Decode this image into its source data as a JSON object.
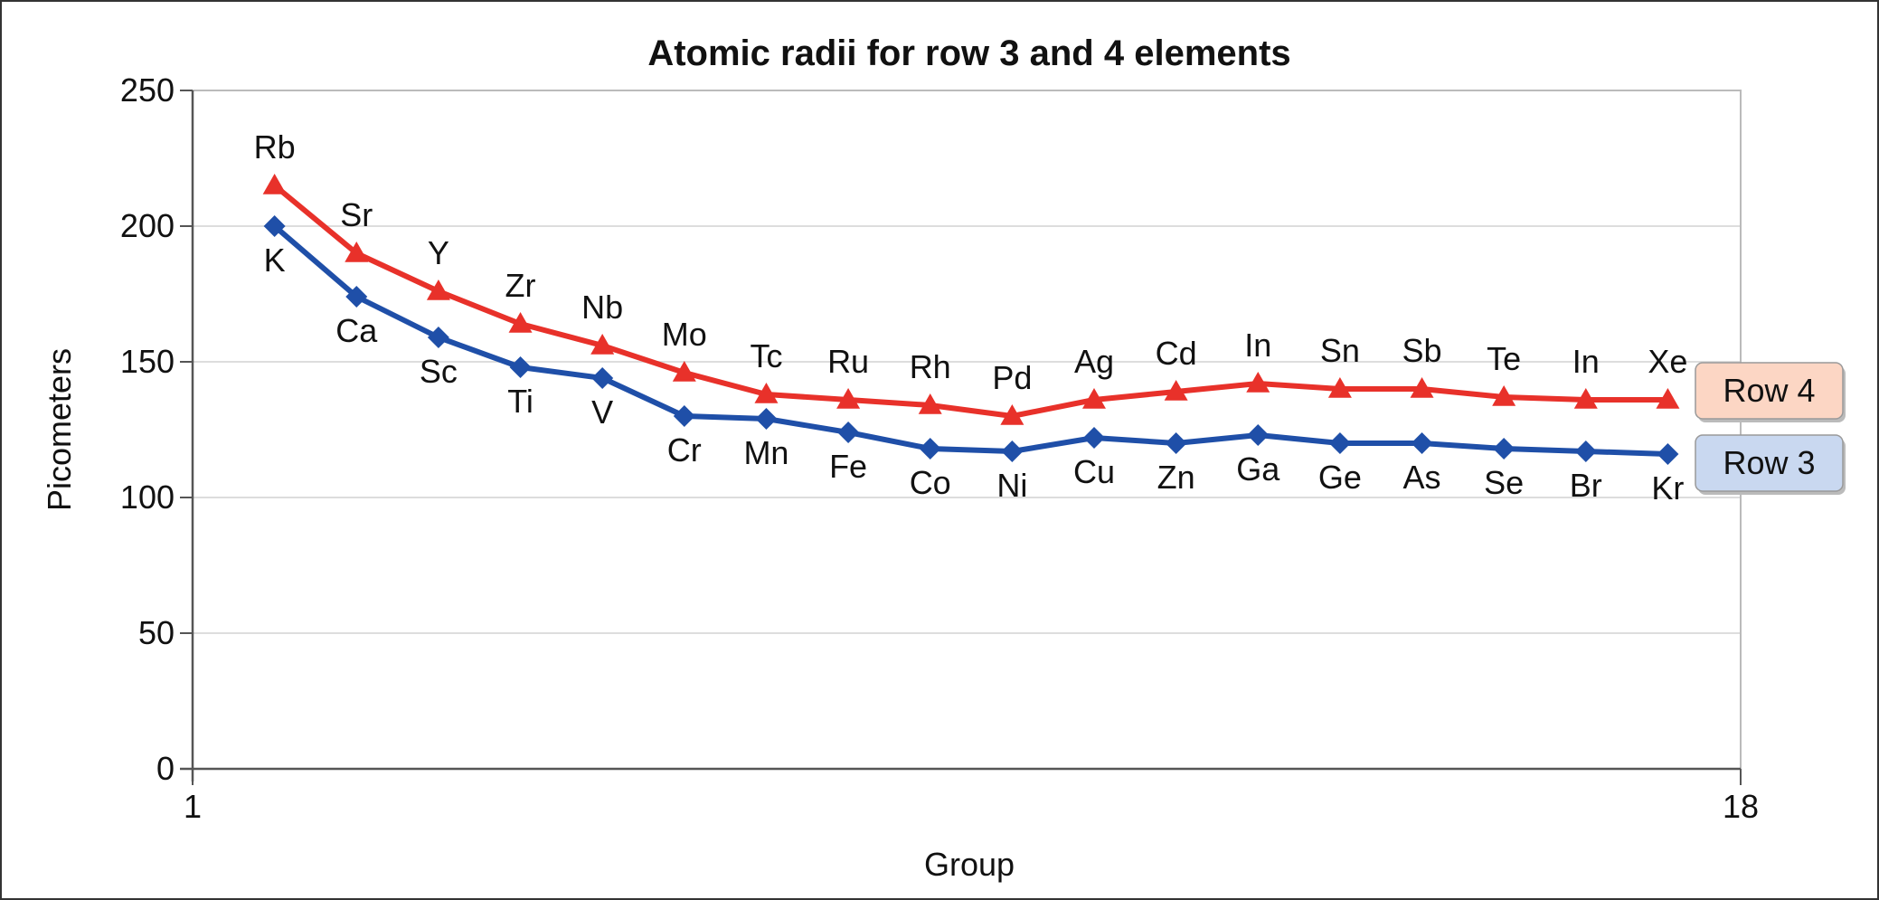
{
  "chart_data": {
    "type": "line",
    "title": "Atomic radii for row 3 and 4 elements",
    "xlabel": "Group",
    "ylabel": "Picometers",
    "xlim": [
      1,
      18
    ],
    "ylim": [
      0,
      250
    ],
    "x_ticks": [
      "1",
      "18"
    ],
    "y_ticks": [
      "0",
      "50",
      "100",
      "150",
      "200",
      "250"
    ],
    "grid": true,
    "colors": {
      "row4": "#e8312a",
      "row3": "#1f4fa8",
      "legend_row4_bg": "#fcd6c4",
      "legend_row3_bg": "#c9d8f0"
    },
    "series": [
      {
        "name": "Row 4",
        "marker": "triangle",
        "x": [
          1.9,
          2.8,
          3.7,
          4.6,
          5.5,
          6.4,
          7.3,
          8.2,
          9.1,
          10.0,
          10.9,
          11.8,
          12.7,
          13.6,
          14.5,
          15.4,
          16.3,
          17.2
        ],
        "values": [
          215,
          190,
          176,
          164,
          156,
          146,
          138,
          136,
          134,
          130,
          136,
          139,
          142,
          140,
          140,
          137,
          136,
          136
        ],
        "labels": [
          "Rb",
          "Sr",
          "Y",
          "Zr",
          "Nb",
          "Mo",
          "Tc",
          "Ru",
          "Rh",
          "Pd",
          "Ag",
          "Cd",
          "In",
          "Sn",
          "Sb",
          "Te",
          "In",
          "Xe"
        ]
      },
      {
        "name": "Row 3",
        "marker": "diamond",
        "x": [
          1.9,
          2.8,
          3.7,
          4.6,
          5.5,
          6.4,
          7.3,
          8.2,
          9.1,
          10.0,
          10.9,
          11.8,
          12.7,
          13.6,
          14.5,
          15.4,
          16.3,
          17.2
        ],
        "values": [
          200,
          174,
          159,
          148,
          144,
          130,
          129,
          124,
          118,
          117,
          122,
          120,
          123,
          120,
          120,
          118,
          117,
          116
        ],
        "labels": [
          "K",
          "Ca",
          "Sc",
          "Ti",
          "V",
          "Cr",
          "Mn",
          "Fe",
          "Co",
          "Ni",
          "Cu",
          "Zn",
          "Ga",
          "Ge",
          "As",
          "Se",
          "Br",
          "Kr"
        ]
      }
    ]
  }
}
